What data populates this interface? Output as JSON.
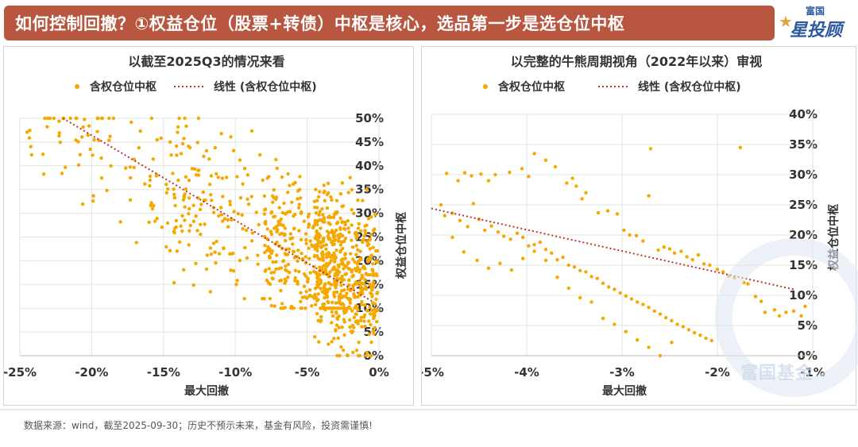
{
  "header": {
    "title": "如何控制回撤？①权益仓位（股票+转债）中枢是核心，选品第一步是选仓位中枢"
  },
  "brand": {
    "small": "富国",
    "big": "星投顾",
    "star": "★",
    "watermark": "富国基金"
  },
  "colors": {
    "header_bg": "#b9563f",
    "point": "#f5a800",
    "trend": "#c0342b",
    "brand": "#2c5aa0"
  },
  "footer": {
    "note": "数据来源：wind，截至2025-09-30；历史不预示未来，基金有风险，投资需谨慎!"
  },
  "chart_data": [
    {
      "type": "scatter",
      "title": "以截至2025Q3的情况来看",
      "xlabel": "最大回撤",
      "ylabel": "权益仓位中枢",
      "legend": {
        "series": "含权仓位中枢",
        "trend": "线性 (含权仓位中枢)"
      },
      "xlim": [
        -0.25,
        0
      ],
      "ylim": [
        0,
        0.5
      ],
      "xticks": [
        "-25%",
        "-20%",
        "-15%",
        "-10%",
        "-5%",
        "0%"
      ],
      "yticks": [
        "0%",
        "5%",
        "10%",
        "15%",
        "20%",
        "25%",
        "30%",
        "35%",
        "40%",
        "45%",
        "50%"
      ],
      "trendline": {
        "x": [
          -0.22,
          -0.005
        ],
        "y": [
          0.5,
          0.115
        ]
      },
      "point_count": 1000,
      "point_regions": [
        {
          "xmin": -0.245,
          "xmax": -0.12,
          "ymin": 0.1,
          "ymax": 0.5,
          "share": 0.1
        },
        {
          "xmin": -0.16,
          "xmax": -0.07,
          "ymin": 0.12,
          "ymax": 0.5,
          "share": 0.15
        },
        {
          "xmin": -0.08,
          "xmax": -0.02,
          "ymin": 0.1,
          "ymax": 0.48,
          "share": 0.3
        },
        {
          "xmin": -0.045,
          "xmax": -0.001,
          "ymin": 0.0,
          "ymax": 0.35,
          "share": 0.45
        }
      ]
    },
    {
      "type": "scatter",
      "title": "以完整的牛熊周期视角（2022年以来）审视",
      "xlabel": "最大回撤",
      "ylabel": "权益仓位中枢",
      "legend": {
        "series": "含权仓位中枢",
        "trend": "线性 (含权仓位中枢)"
      },
      "xlim": [
        -0.05,
        -0.01
      ],
      "ylim": [
        0,
        0.4
      ],
      "xticks": [
        "-5%",
        "-4%",
        "-3%",
        "-2%",
        "-1%"
      ],
      "yticks": [
        "0%",
        "5%",
        "10%",
        "15%",
        "20%",
        "25%",
        "30%",
        "35%",
        "40%"
      ],
      "trendline": {
        "x": [
          -0.05,
          -0.012
        ],
        "y": [
          0.244,
          0.11
        ]
      },
      "points": [
        [
          -0.0484,
          0.302
        ],
        [
          -0.0472,
          0.29
        ],
        [
          -0.0465,
          0.303
        ],
        [
          -0.0458,
          0.298
        ],
        [
          -0.0448,
          0.301
        ],
        [
          -0.044,
          0.29
        ],
        [
          -0.0433,
          0.3
        ],
        [
          -0.0418,
          0.304
        ],
        [
          -0.0405,
          0.31
        ],
        [
          -0.0398,
          0.297
        ],
        [
          -0.0392,
          0.335
        ],
        [
          -0.038,
          0.324
        ],
        [
          -0.037,
          0.313
        ],
        [
          -0.0358,
          0.286
        ],
        [
          -0.0352,
          0.294
        ],
        [
          -0.0348,
          0.281
        ],
        [
          -0.0342,
          0.26
        ],
        [
          -0.0338,
          0.27
        ],
        [
          -0.0325,
          0.237
        ],
        [
          -0.0315,
          0.24
        ],
        [
          -0.0305,
          0.235
        ],
        [
          -0.0298,
          0.208
        ],
        [
          -0.0292,
          0.2
        ],
        [
          -0.0285,
          0.199
        ],
        [
          -0.0278,
          0.19
        ],
        [
          -0.0272,
          0.265
        ],
        [
          -0.027,
          0.343
        ],
        [
          -0.0262,
          0.175
        ],
        [
          -0.0256,
          0.18
        ],
        [
          -0.025,
          0.177
        ],
        [
          -0.0245,
          0.17
        ],
        [
          -0.0238,
          0.173
        ],
        [
          -0.0232,
          0.164
        ],
        [
          -0.0226,
          0.159
        ],
        [
          -0.022,
          0.167
        ],
        [
          -0.0214,
          0.152
        ],
        [
          -0.0208,
          0.15
        ],
        [
          -0.02,
          0.143
        ],
        [
          -0.0194,
          0.139
        ],
        [
          -0.0188,
          0.132
        ],
        [
          -0.0182,
          0.129
        ],
        [
          -0.0176,
          0.345
        ],
        [
          -0.0172,
          0.121
        ],
        [
          -0.0168,
          0.119
        ],
        [
          -0.016,
          0.098
        ],
        [
          -0.0154,
          0.09
        ],
        [
          -0.015,
          0.072
        ],
        [
          -0.014,
          0.076
        ],
        [
          -0.0135,
          0.066
        ],
        [
          -0.0128,
          0.072
        ],
        [
          -0.012,
          0.074
        ],
        [
          -0.0112,
          0.066
        ],
        [
          -0.0108,
          0.082
        ],
        [
          -0.049,
          0.25
        ],
        [
          -0.0486,
          0.232
        ],
        [
          -0.0478,
          0.236
        ],
        [
          -0.047,
          0.224
        ],
        [
          -0.0462,
          0.214
        ],
        [
          -0.0456,
          0.252
        ],
        [
          -0.045,
          0.226
        ],
        [
          -0.0444,
          0.208
        ],
        [
          -0.0437,
          0.215
        ],
        [
          -0.043,
          0.205
        ],
        [
          -0.0424,
          0.198
        ],
        [
          -0.0417,
          0.193
        ],
        [
          -0.041,
          0.203
        ],
        [
          -0.0404,
          0.196
        ],
        [
          -0.0398,
          0.182
        ],
        [
          -0.0392,
          0.184
        ],
        [
          -0.0386,
          0.188
        ],
        [
          -0.038,
          0.176
        ],
        [
          -0.0374,
          0.17
        ],
        [
          -0.0368,
          0.159
        ],
        [
          -0.0362,
          0.163
        ],
        [
          -0.0356,
          0.15
        ],
        [
          -0.035,
          0.147
        ],
        [
          -0.0344,
          0.141
        ],
        [
          -0.0338,
          0.139
        ],
        [
          -0.0332,
          0.131
        ],
        [
          -0.0326,
          0.128
        ],
        [
          -0.032,
          0.12
        ],
        [
          -0.0314,
          0.114
        ],
        [
          -0.0308,
          0.11
        ],
        [
          -0.0302,
          0.104
        ],
        [
          -0.0296,
          0.099
        ],
        [
          -0.029,
          0.094
        ],
        [
          -0.0284,
          0.089
        ],
        [
          -0.0278,
          0.085
        ],
        [
          -0.0272,
          0.08
        ],
        [
          -0.0266,
          0.074
        ],
        [
          -0.026,
          0.069
        ],
        [
          -0.0254,
          0.063
        ],
        [
          -0.0248,
          0.058
        ],
        [
          -0.0242,
          0.052
        ],
        [
          -0.0236,
          0.048
        ],
        [
          -0.023,
          0.043
        ],
        [
          -0.0224,
          0.038
        ],
        [
          -0.0218,
          0.034
        ],
        [
          -0.0212,
          0.029
        ],
        [
          -0.0206,
          0.025
        ],
        [
          -0.0478,
          0.196
        ],
        [
          -0.0466,
          0.172
        ],
        [
          -0.0452,
          0.158
        ],
        [
          -0.044,
          0.145
        ],
        [
          -0.0428,
          0.153
        ],
        [
          -0.0416,
          0.142
        ],
        [
          -0.0404,
          0.161
        ],
        [
          -0.0392,
          0.173
        ],
        [
          -0.038,
          0.158
        ],
        [
          -0.0368,
          0.13
        ],
        [
          -0.0356,
          0.112
        ],
        [
          -0.0344,
          0.096
        ],
        [
          -0.0332,
          0.089
        ],
        [
          -0.032,
          0.062
        ],
        [
          -0.0308,
          0.052
        ],
        [
          -0.0296,
          0.04
        ],
        [
          -0.0284,
          0.026
        ],
        [
          -0.0272,
          0.014
        ],
        [
          -0.026,
          0.0
        ],
        [
          -0.0248,
          0.022
        ]
      ]
    }
  ]
}
